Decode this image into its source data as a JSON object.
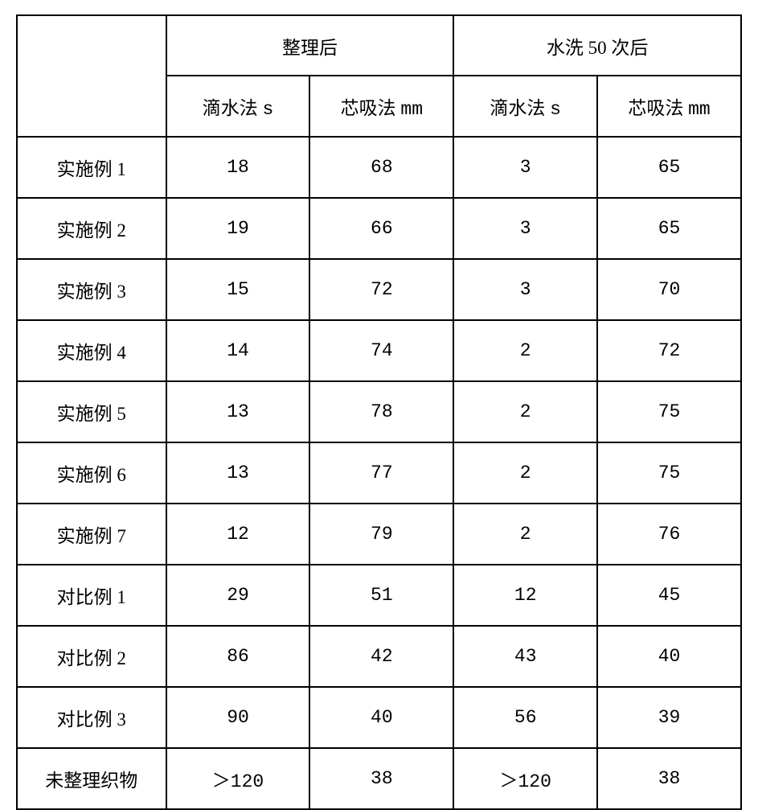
{
  "table": {
    "type": "table",
    "border_color": "#000000",
    "background_color": "#ffffff",
    "text_color": "#000000",
    "font_size_pt": 17,
    "header": {
      "corner_label": "",
      "group_after": "整理后",
      "group_wash50": "水洗 50 次后",
      "sub_drip": "滴水法",
      "sub_drip_unit": "s",
      "sub_wick": "芯吸法",
      "sub_wick_unit": "mm"
    },
    "rows": [
      {
        "label": "实施例 1",
        "a_drip": "18",
        "a_wick": "68",
        "w_drip": "3",
        "w_wick": "65"
      },
      {
        "label": "实施例 2",
        "a_drip": "19",
        "a_wick": "66",
        "w_drip": "3",
        "w_wick": "65"
      },
      {
        "label": "实施例 3",
        "a_drip": "15",
        "a_wick": "72",
        "w_drip": "3",
        "w_wick": "70"
      },
      {
        "label": "实施例 4",
        "a_drip": "14",
        "a_wick": "74",
        "w_drip": "2",
        "w_wick": "72"
      },
      {
        "label": "实施例 5",
        "a_drip": "13",
        "a_wick": "78",
        "w_drip": "2",
        "w_wick": "75"
      },
      {
        "label": "实施例 6",
        "a_drip": "13",
        "a_wick": "77",
        "w_drip": "2",
        "w_wick": "75"
      },
      {
        "label": "实施例 7",
        "a_drip": "12",
        "a_wick": "79",
        "w_drip": "2",
        "w_wick": "76"
      },
      {
        "label": "对比例 1",
        "a_drip": "29",
        "a_wick": "51",
        "w_drip": "12",
        "w_wick": "45"
      },
      {
        "label": "对比例 2",
        "a_drip": "86",
        "a_wick": "42",
        "w_drip": "43",
        "w_wick": "40"
      },
      {
        "label": "对比例 3",
        "a_drip": "90",
        "a_wick": "40",
        "w_drip": "56",
        "w_wick": "39"
      },
      {
        "label": "未整理织物",
        "a_drip": "＞120",
        "a_wick": "38",
        "w_drip": "＞120",
        "w_wick": "38"
      }
    ]
  }
}
